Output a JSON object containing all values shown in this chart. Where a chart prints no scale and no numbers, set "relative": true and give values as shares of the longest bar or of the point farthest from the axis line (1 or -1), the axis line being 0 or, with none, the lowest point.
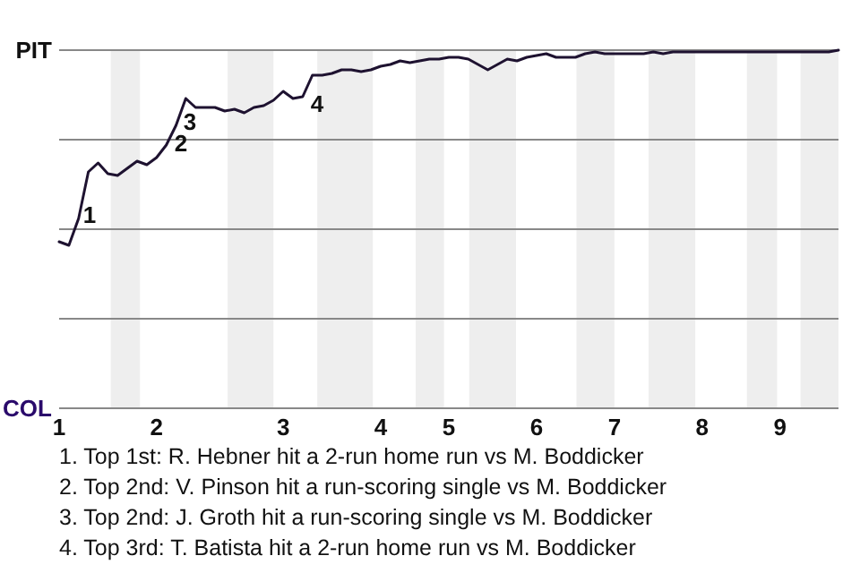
{
  "chart_data": {
    "type": "line",
    "relative": true,
    "categories": [
      "1",
      null,
      null,
      null,
      null,
      null,
      null,
      null,
      null,
      null,
      "2",
      null,
      null,
      null,
      null,
      null,
      null,
      null,
      null,
      null,
      null,
      null,
      null,
      "3",
      null,
      null,
      null,
      null,
      null,
      null,
      null,
      null,
      null,
      "4",
      null,
      null,
      null,
      null,
      null,
      null,
      "5",
      null,
      null,
      null,
      null,
      null,
      null,
      null,
      null,
      "6",
      null,
      null,
      null,
      null,
      null,
      null,
      null,
      "7",
      null,
      null,
      null,
      null,
      null,
      null,
      null,
      null,
      "8",
      null,
      null,
      null,
      null,
      null,
      null,
      null,
      "9",
      null,
      null,
      null,
      null,
      null,
      null
    ],
    "series": [
      {
        "color": "#1e1230",
        "values": [
          0.465,
          0.455,
          0.53,
          0.66,
          0.685,
          0.655,
          0.65,
          0.67,
          0.69,
          0.68,
          0.7,
          0.735,
          0.79,
          0.865,
          0.84,
          0.84,
          0.84,
          0.83,
          0.835,
          0.825,
          0.84,
          0.845,
          0.86,
          0.885,
          0.865,
          0.87,
          0.93,
          0.93,
          0.935,
          0.945,
          0.945,
          0.94,
          0.945,
          0.955,
          0.96,
          0.97,
          0.965,
          0.97,
          0.975,
          0.975,
          0.98,
          0.98,
          0.975,
          0.96,
          0.945,
          0.96,
          0.975,
          0.97,
          0.98,
          0.985,
          0.99,
          0.98,
          0.98,
          0.98,
          0.99,
          0.995,
          0.99,
          0.99,
          0.99,
          0.99,
          0.99,
          0.995,
          0.99,
          0.995,
          0.995,
          0.995,
          0.995,
          0.995,
          0.995,
          0.995,
          0.995,
          0.995,
          0.995,
          0.995,
          0.995,
          0.995,
          0.995,
          0.995,
          0.995,
          0.995,
          1
        ]
      }
    ],
    "marker": "none",
    "ref_lines": [
      {
        "axis": "y",
        "value": 0.25,
        "color": "#888888"
      },
      {
        "axis": "y",
        "value": 0.5,
        "color": "#888888"
      },
      {
        "axis": "y",
        "value": 0.75,
        "color": "#888888"
      },
      {
        "axis": "y",
        "value": 1,
        "color": "#888888"
      }
    ],
    "annotations": [
      "PIT",
      "COL",
      "1",
      "2",
      "3",
      "4",
      "1. Top 1st: R. Hebner hit a 2-run home run vs M. Boddicker",
      "2. Top 2nd: V. Pinson hit a run-scoring single vs M. Boddicker",
      "3. Top 2nd: J. Groth hit a run-scoring single vs M. Boddicker",
      "4. Top 3rd: T. Batista hit a 2-run home run vs M. Boddicker"
    ]
  }
}
